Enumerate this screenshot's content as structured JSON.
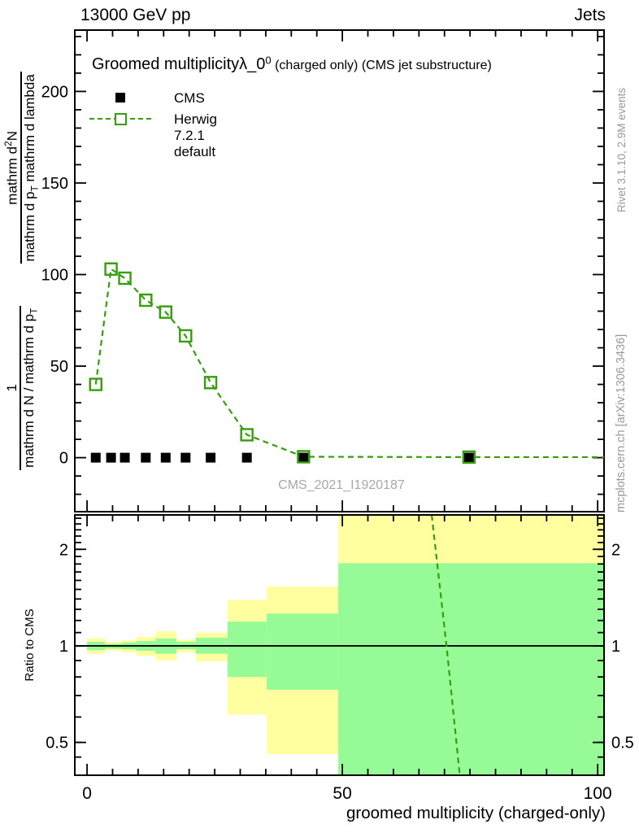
{
  "header": {
    "left": "13000 GeV pp",
    "right": "Jets"
  },
  "main_plot": {
    "title_main": "Groomed multiplicity",
    "title_lambda": "λ_0",
    "title_sup": "0",
    "title_rest": " (charged only) (CMS jet substructure)",
    "watermark": "CMS_2021_I1920187",
    "ylabel": {
      "frac1_num": "1",
      "frac1_den": "mathrm d N / mathrm d p",
      "frac1_den_sub": "T",
      "frac2_num": "mathrm d",
      "frac2_num_sup": "2",
      "frac2_num_post": "N",
      "frac2_den": "mathrm d p",
      "frac2_den_sub": "T",
      "frac2_den_post": " mathrm d lambda"
    }
  },
  "legend": {
    "items": [
      {
        "label": "CMS",
        "marker": "filled-square",
        "color": "#000000"
      },
      {
        "label": "Herwig 7.2.1 default",
        "marker": "open-square-dashed-line",
        "color": "#359e0c"
      }
    ]
  },
  "side_text": {
    "top": "Rivet 3.1.10,  2.9M events",
    "bottom": "mcplots.cern.ch [arXiv:1306.3436]"
  },
  "ratio_panel": {
    "ylabel": "Ratio to CMS"
  },
  "xaxis": {
    "title": "groomed multiplicity (charged-only)"
  },
  "colors": {
    "herwig_green": "#359e0c",
    "band_yellow": "#ffffa0",
    "band_green": "#96fb96",
    "gray_text": "#999999",
    "black": "#000000"
  },
  "chart_data": [
    {
      "type": "scatter",
      "panel": "main",
      "title": "Groomed multiplicity λ_0^0 (charged only) (CMS jet substructure)",
      "xlabel": "groomed multiplicity (charged-only)",
      "xlim": [
        -2.4,
        101.25
      ],
      "ylim": [
        -29.5,
        233.5
      ],
      "xticks": [
        0,
        50,
        100
      ],
      "xtick_minor_step": 5,
      "yticks": [
        0,
        50,
        100,
        150,
        200
      ],
      "ytick_minor_step": 10,
      "legend_position": "top-left",
      "grid": false,
      "series": [
        {
          "name": "CMS",
          "marker": "filled-square",
          "color": "#000000",
          "line": "none",
          "x": [
            1.7,
            4.7,
            7.4,
            11.5,
            15.4,
            19.3,
            24.2,
            31.3,
            42.4,
            74.8
          ],
          "y": [
            0,
            0,
            0,
            0,
            0,
            0,
            0,
            0,
            0,
            0
          ]
        },
        {
          "name": "Herwig 7.2.1 default",
          "marker": "open-square",
          "color": "#359e0c",
          "line": "dashed",
          "x": [
            1.7,
            4.7,
            7.4,
            11.5,
            15.4,
            19.3,
            24.2,
            31.3,
            42.4,
            74.8
          ],
          "y": [
            40,
            103,
            98,
            86,
            79.5,
            66.5,
            41,
            12.5,
            0.5,
            0.3
          ],
          "line_extend_x": 101.25
        }
      ]
    },
    {
      "type": "ratio-bands",
      "panel": "ratio",
      "ylabel": "Ratio to CMS",
      "yscale": "log",
      "ylim": [
        0.395,
        2.56
      ],
      "yticks": [
        0.5,
        1,
        2
      ],
      "ytick_minor": [
        0.45,
        0.5,
        0.6,
        0.7,
        0.8,
        0.9,
        1.0,
        1.1,
        1.2,
        1.3,
        1.4,
        1.5,
        1.6,
        1.7,
        1.8,
        1.9,
        2.0,
        2.1,
        2.2,
        2.3,
        2.4,
        2.5
      ],
      "reference_line": 1,
      "bands": [
        {
          "x": [
            0,
            3.5
          ],
          "yellow": [
            0.945,
            1.055
          ],
          "green": [
            0.97,
            1.03
          ]
        },
        {
          "x": [
            3.5,
            6.8
          ],
          "yellow": [
            0.965,
            1.03
          ],
          "green": [
            0.98,
            1.015
          ]
        },
        {
          "x": [
            6.8,
            9.7
          ],
          "yellow": [
            0.955,
            1.04
          ],
          "green": [
            0.975,
            1.025
          ]
        },
        {
          "x": [
            9.7,
            13.4
          ],
          "yellow": [
            0.93,
            1.065
          ],
          "green": [
            0.965,
            1.035
          ]
        },
        {
          "x": [
            13.4,
            17.5
          ],
          "yellow": [
            0.9,
            1.11
          ],
          "green": [
            0.945,
            1.055
          ]
        },
        {
          "x": [
            17.5,
            21.3
          ],
          "yellow": [
            0.955,
            1.045
          ],
          "green": [
            0.975,
            1.03
          ]
        },
        {
          "x": [
            21.3,
            27.5
          ],
          "yellow": [
            0.895,
            1.1
          ],
          "green": [
            0.945,
            1.06
          ]
        },
        {
          "x": [
            27.5,
            35.2
          ],
          "yellow": [
            0.61,
            1.39
          ],
          "green": [
            0.8,
            1.19
          ]
        },
        {
          "x": [
            35.2,
            49.2
          ],
          "yellow": [
            0.46,
            1.53
          ],
          "green": [
            0.73,
            1.26
          ]
        },
        {
          "x": [
            49.2,
            101.25
          ],
          "yellow": [
            0.395,
            2.56
          ],
          "green": [
            0.395,
            1.81
          ]
        }
      ],
      "model_line": {
        "name": "Herwig 7.2.1 default",
        "style": "dashed",
        "color": "#359e0c",
        "x": [
          67.5,
          70.4,
          73.0
        ],
        "y": [
          2.56,
          1.0,
          0.395
        ]
      }
    }
  ]
}
